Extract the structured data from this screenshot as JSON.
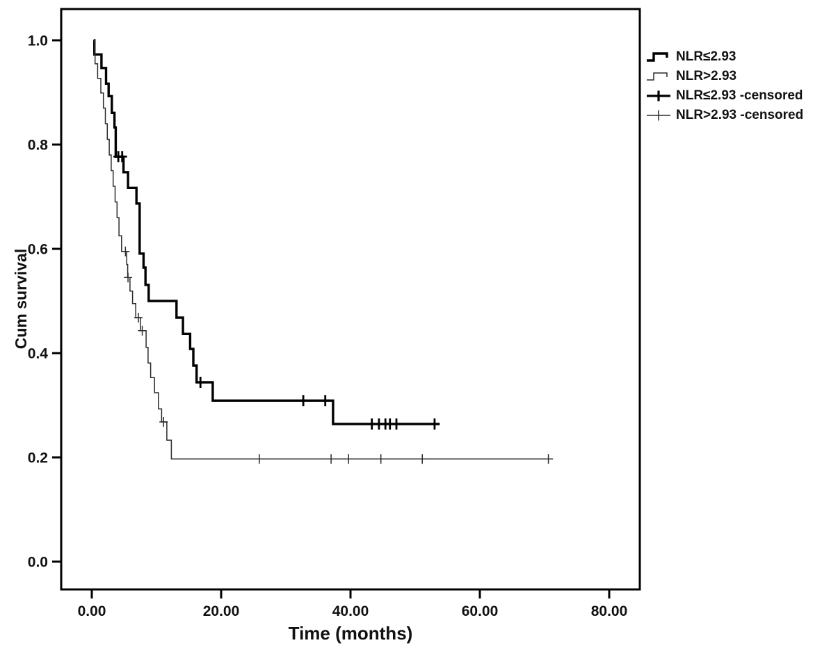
{
  "figure": {
    "xlabel": "Time (months)",
    "ylabel": "Cum survival"
  },
  "legend": {
    "items": [
      {
        "label": "NLR≤2.93",
        "symbol": "step-line",
        "weight": "bold"
      },
      {
        "label": "NLR>2.93",
        "symbol": "step-line",
        "weight": "thin"
      },
      {
        "label": "NLR≤2.93 -censored",
        "symbol": "plus",
        "weight": "bold"
      },
      {
        "label": "NLR>2.93 -censored",
        "symbol": "plus",
        "weight": "thin"
      }
    ]
  },
  "chart_data": {
    "type": "line",
    "subtype": "kaplan-meier-step",
    "title": "",
    "xlabel": "Time (months)",
    "ylabel": "Cum survival",
    "xlim": [
      -4.7,
      84.7
    ],
    "ylim": [
      -0.054,
      1.06
    ],
    "x_ticks": [
      "0.00",
      "20.00",
      "40.00",
      "60.00",
      "80.00"
    ],
    "x_tick_values": [
      0,
      20,
      40,
      60,
      80
    ],
    "y_ticks": [
      "0.0",
      "0.2",
      "0.4",
      "0.6",
      "0.8",
      "1.0"
    ],
    "y_tick_values": [
      0,
      0.2,
      0.4,
      0.6,
      0.8,
      1.0
    ],
    "grid": false,
    "legend_position": "right-outside",
    "colors": {
      "bold_line": "#000000",
      "thin_line": "#2b2b2b",
      "frame": "#000000"
    },
    "series": [
      {
        "name": "NLR≤2.93",
        "style": "bold",
        "points": [
          [
            0.3,
            1.0
          ],
          [
            0.4,
            0.973
          ],
          [
            1.5,
            0.947
          ],
          [
            2.2,
            0.917
          ],
          [
            2.6,
            0.893
          ],
          [
            3.1,
            0.861
          ],
          [
            3.5,
            0.833
          ],
          [
            3.7,
            0.777
          ],
          [
            4.9,
            0.747
          ],
          [
            5.6,
            0.717
          ],
          [
            6.9,
            0.687
          ],
          [
            7.4,
            0.591
          ],
          [
            8.0,
            0.564
          ],
          [
            8.3,
            0.531
          ],
          [
            8.8,
            0.5
          ],
          [
            13.1,
            0.468
          ],
          [
            14.1,
            0.437
          ],
          [
            15.2,
            0.408
          ],
          [
            15.7,
            0.376
          ],
          [
            16.2,
            0.344
          ],
          [
            18.7,
            0.309
          ],
          [
            37.3,
            0.264
          ]
        ],
        "end_t": 53.8,
        "censored": [
          [
            4.1,
            0.777
          ],
          [
            4.7,
            0.777
          ],
          [
            16.8,
            0.344
          ],
          [
            32.7,
            0.309
          ],
          [
            36.1,
            0.309
          ],
          [
            43.3,
            0.264
          ],
          [
            44.4,
            0.264
          ],
          [
            45.4,
            0.264
          ],
          [
            46.1,
            0.264
          ],
          [
            47.1,
            0.264
          ],
          [
            53.0,
            0.264
          ]
        ]
      },
      {
        "name": "NLR>2.93",
        "style": "thin",
        "points": [
          [
            0.2,
            1.0
          ],
          [
            0.4,
            0.973
          ],
          [
            0.5,
            0.955
          ],
          [
            0.9,
            0.927
          ],
          [
            1.4,
            0.899
          ],
          [
            1.8,
            0.87
          ],
          [
            2.1,
            0.84
          ],
          [
            2.4,
            0.81
          ],
          [
            2.7,
            0.78
          ],
          [
            3.0,
            0.75
          ],
          [
            3.3,
            0.72
          ],
          [
            3.6,
            0.69
          ],
          [
            3.9,
            0.66
          ],
          [
            4.2,
            0.625
          ],
          [
            4.6,
            0.595
          ],
          [
            5.4,
            0.57
          ],
          [
            5.55,
            0.545
          ],
          [
            5.9,
            0.519
          ],
          [
            6.3,
            0.495
          ],
          [
            6.8,
            0.468
          ],
          [
            7.5,
            0.443
          ],
          [
            8.4,
            0.411
          ],
          [
            8.7,
            0.381
          ],
          [
            9.1,
            0.353
          ],
          [
            9.7,
            0.324
          ],
          [
            10.3,
            0.293
          ],
          [
            10.8,
            0.268
          ],
          [
            11.6,
            0.233
          ],
          [
            12.3,
            0.197
          ]
        ],
        "end_t": 71.3,
        "censored": [
          [
            5.2,
            0.595
          ],
          [
            5.6,
            0.545
          ],
          [
            7.2,
            0.468
          ],
          [
            7.8,
            0.443
          ],
          [
            11.1,
            0.268
          ],
          [
            25.9,
            0.197
          ],
          [
            37.0,
            0.197
          ],
          [
            39.7,
            0.197
          ],
          [
            44.7,
            0.197
          ],
          [
            51.1,
            0.197
          ],
          [
            70.6,
            0.197
          ]
        ]
      }
    ]
  }
}
